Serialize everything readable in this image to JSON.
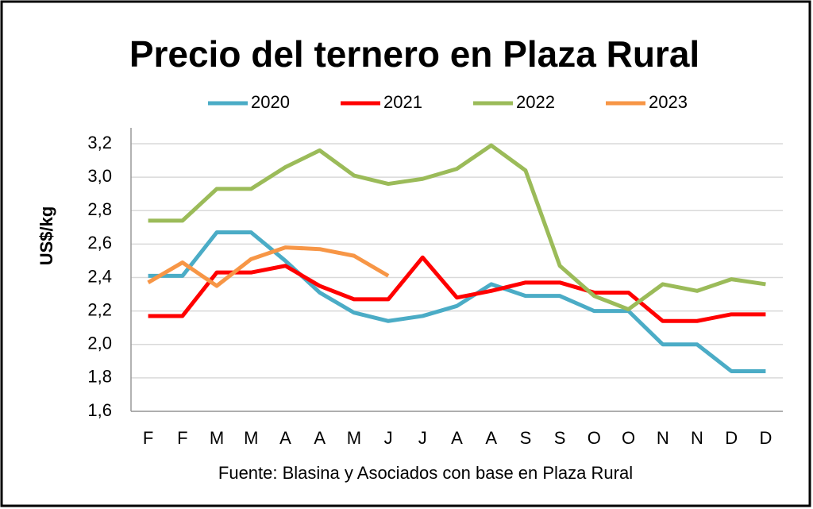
{
  "chart_data": {
    "type": "line",
    "title": "Precio del ternero en Plaza Rural",
    "y_label": "US$/kg",
    "source": "Fuente: Blasina y Asociados con base en Plaza Rural",
    "categories": [
      "F",
      "F",
      "M",
      "M",
      "A",
      "A",
      "M",
      "J",
      "J",
      "A",
      "A",
      "S",
      "S",
      "O",
      "O",
      "N",
      "N",
      "D",
      "D"
    ],
    "series": [
      {
        "name": "2020",
        "color": "#4bacc6",
        "values": [
          2.41,
          2.41,
          2.67,
          2.67,
          2.5,
          2.31,
          2.19,
          2.14,
          2.17,
          2.23,
          2.36,
          2.29,
          2.29,
          2.2,
          2.2,
          2.0,
          2.0,
          1.84,
          1.84
        ]
      },
      {
        "name": "2021",
        "color": "#ff0000",
        "values": [
          2.17,
          2.17,
          2.43,
          2.43,
          2.47,
          2.35,
          2.27,
          2.27,
          2.52,
          2.28,
          2.32,
          2.37,
          2.37,
          2.31,
          2.31,
          2.14,
          2.14,
          2.18,
          2.18
        ]
      },
      {
        "name": "2022",
        "color": "#9bbb59",
        "values": [
          2.74,
          2.74,
          2.93,
          2.93,
          3.06,
          3.16,
          3.01,
          2.96,
          2.99,
          3.05,
          3.19,
          3.04,
          2.47,
          2.29,
          2.21,
          2.36,
          2.32,
          2.39,
          2.36
        ]
      },
      {
        "name": "2023",
        "color": "#f79646",
        "values": [
          2.37,
          2.49,
          2.35,
          2.51,
          2.58,
          2.57,
          2.53,
          2.41,
          null,
          null,
          null,
          null,
          null,
          null,
          null,
          null,
          null,
          null,
          null
        ]
      }
    ],
    "ylim": [
      1.6,
      3.2
    ],
    "yticks": [
      {
        "value": 1.6,
        "label": "1,6"
      },
      {
        "value": 1.8,
        "label": "1,8"
      },
      {
        "value": 2.0,
        "label": "2,0"
      },
      {
        "value": 2.2,
        "label": "2,2"
      },
      {
        "value": 2.4,
        "label": "2,4"
      },
      {
        "value": 2.6,
        "label": "2,6"
      },
      {
        "value": 2.8,
        "label": "2,8"
      },
      {
        "value": 3.0,
        "label": "3,0"
      },
      {
        "value": 3.2,
        "label": "3,2"
      }
    ],
    "grid": true,
    "legend": "top"
  }
}
